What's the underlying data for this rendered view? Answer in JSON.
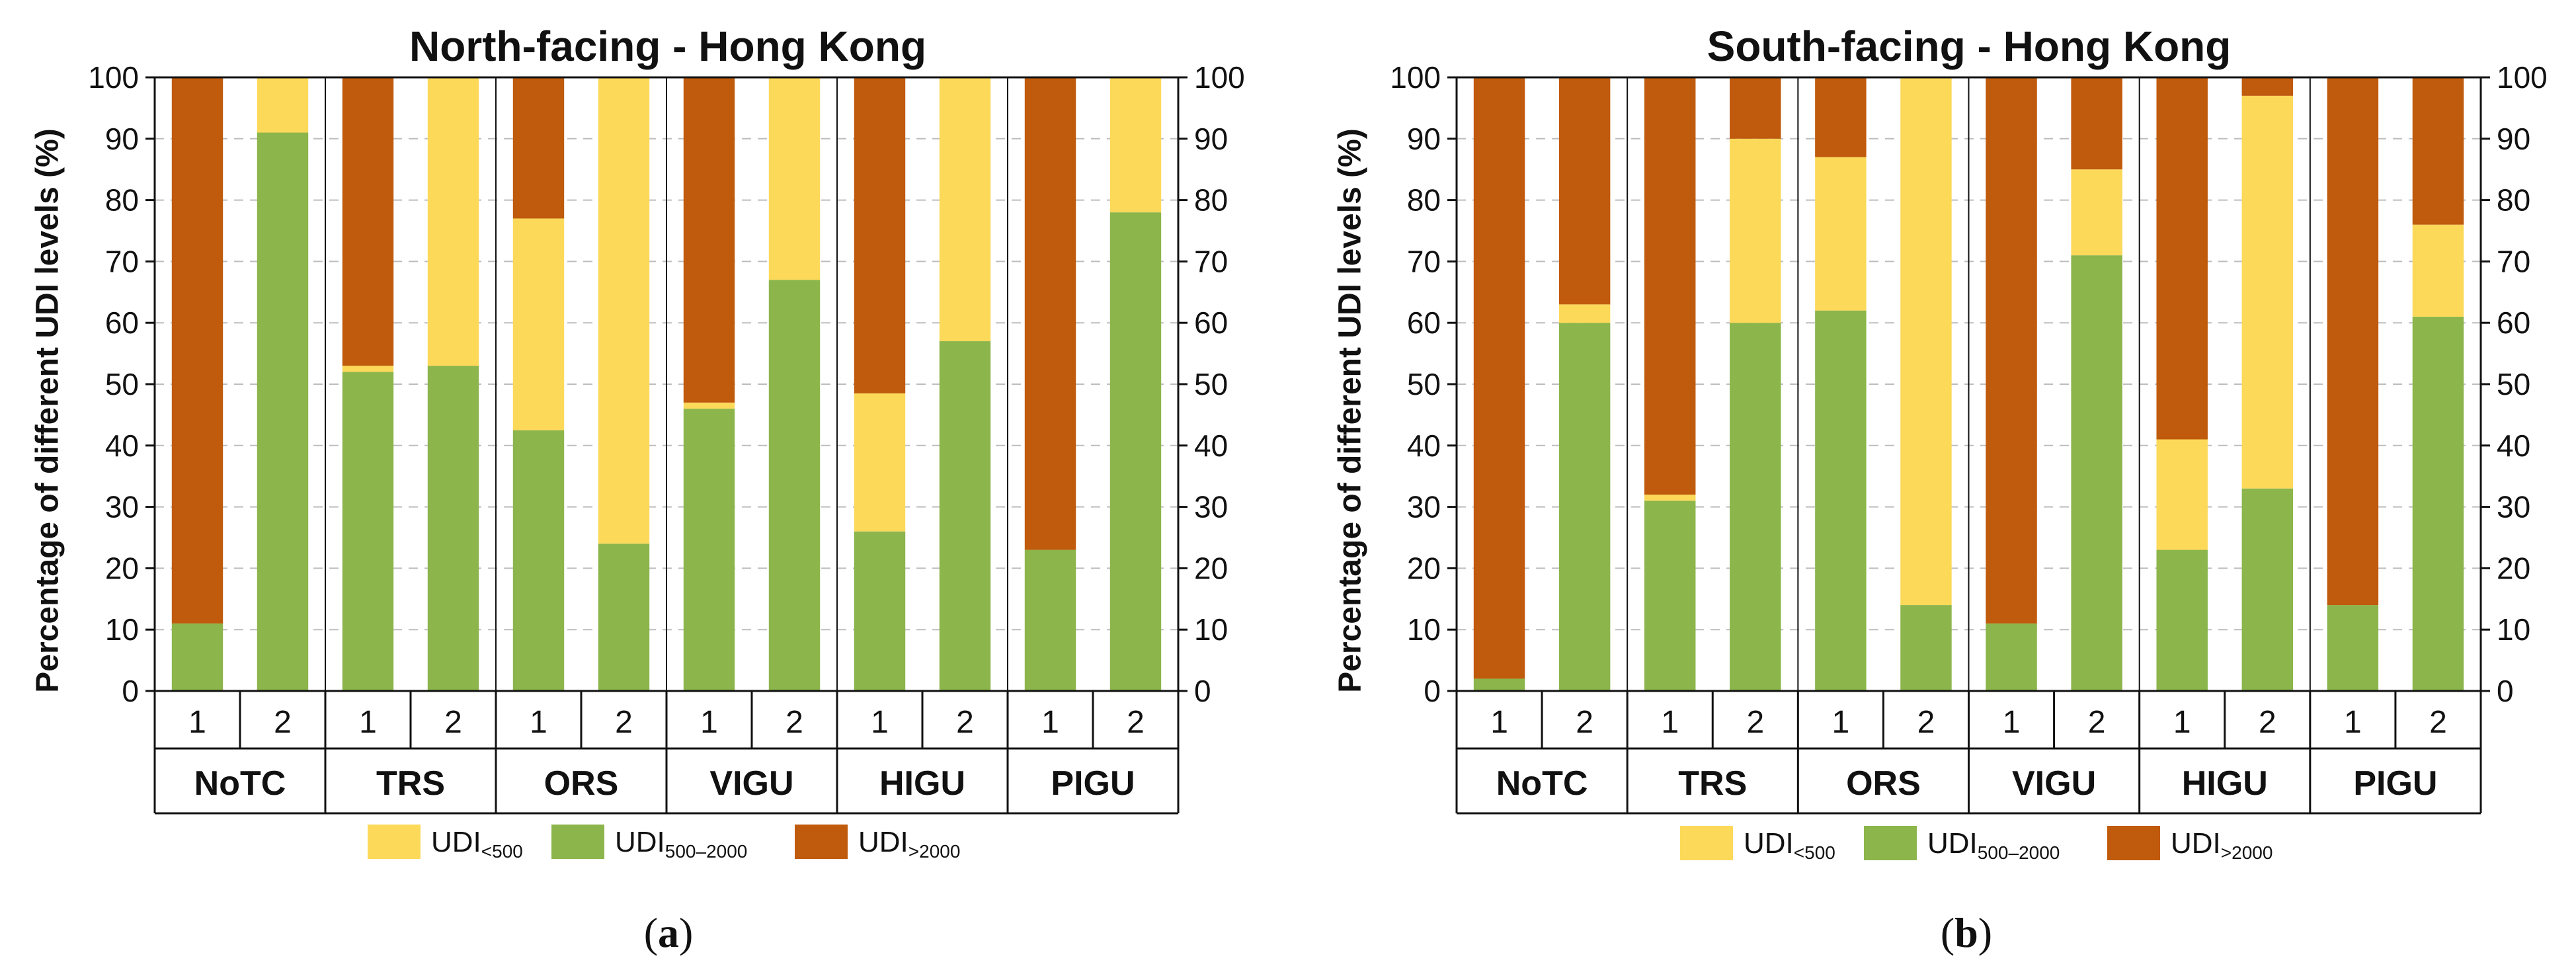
{
  "chart_data": [
    {
      "type": "stacked-bar",
      "title": "North-facing - Hong Kong",
      "ylabel": "Percentage of different UDI levels (%)",
      "ylim": [
        0,
        100
      ],
      "yticks": [
        "0",
        "10",
        "20",
        "30",
        "40",
        "50",
        "60",
        "70",
        "80",
        "90",
        "100"
      ],
      "caption_letter": "a",
      "groups": [
        {
          "name": "NoTC",
          "bars": [
            {
              "label": "1",
              "udi_500_2000": 11,
              "udi_lt_500": 0,
              "udi_gt_2000": 89
            },
            {
              "label": "2",
              "udi_500_2000": 91,
              "udi_lt_500": 9,
              "udi_gt_2000": 0
            }
          ]
        },
        {
          "name": "TRS",
          "bars": [
            {
              "label": "1",
              "udi_500_2000": 52,
              "udi_lt_500": 1,
              "udi_gt_2000": 47
            },
            {
              "label": "2",
              "udi_500_2000": 53,
              "udi_lt_500": 47,
              "udi_gt_2000": 0
            }
          ]
        },
        {
          "name": "ORS",
          "bars": [
            {
              "label": "1",
              "udi_500_2000": 42.5,
              "udi_lt_500": 34.5,
              "udi_gt_2000": 23
            },
            {
              "label": "2",
              "udi_500_2000": 24,
              "udi_lt_500": 76,
              "udi_gt_2000": 0
            }
          ]
        },
        {
          "name": "VIGU",
          "bars": [
            {
              "label": "1",
              "udi_500_2000": 46,
              "udi_lt_500": 1,
              "udi_gt_2000": 53
            },
            {
              "label": "2",
              "udi_500_2000": 67,
              "udi_lt_500": 33,
              "udi_gt_2000": 0
            }
          ]
        },
        {
          "name": "HIGU",
          "bars": [
            {
              "label": "1",
              "udi_500_2000": 26,
              "udi_lt_500": 22.5,
              "udi_gt_2000": 51.5
            },
            {
              "label": "2",
              "udi_500_2000": 57,
              "udi_lt_500": 43,
              "udi_gt_2000": 0
            }
          ]
        },
        {
          "name": "PIGU",
          "bars": [
            {
              "label": "1",
              "udi_500_2000": 23,
              "udi_lt_500": 0,
              "udi_gt_2000": 77
            },
            {
              "label": "2",
              "udi_500_2000": 78,
              "udi_lt_500": 22,
              "udi_gt_2000": 0
            }
          ]
        }
      ]
    },
    {
      "type": "stacked-bar",
      "title": "South-facing - Hong Kong",
      "ylabel": "Percentage of different UDI levels (%)",
      "ylim": [
        0,
        100
      ],
      "yticks": [
        "0",
        "10",
        "20",
        "30",
        "40",
        "50",
        "60",
        "70",
        "80",
        "90",
        "100"
      ],
      "caption_letter": "b",
      "groups": [
        {
          "name": "NoTC",
          "bars": [
            {
              "label": "1",
              "udi_500_2000": 2,
              "udi_lt_500": 0,
              "udi_gt_2000": 98
            },
            {
              "label": "2",
              "udi_500_2000": 60,
              "udi_lt_500": 3,
              "udi_gt_2000": 37
            }
          ]
        },
        {
          "name": "TRS",
          "bars": [
            {
              "label": "1",
              "udi_500_2000": 31,
              "udi_lt_500": 1,
              "udi_gt_2000": 68
            },
            {
              "label": "2",
              "udi_500_2000": 60,
              "udi_lt_500": 30,
              "udi_gt_2000": 10
            }
          ]
        },
        {
          "name": "ORS",
          "bars": [
            {
              "label": "1",
              "udi_500_2000": 62,
              "udi_lt_500": 25,
              "udi_gt_2000": 13
            },
            {
              "label": "2",
              "udi_500_2000": 14,
              "udi_lt_500": 86,
              "udi_gt_2000": 0
            }
          ]
        },
        {
          "name": "VIGU",
          "bars": [
            {
              "label": "1",
              "udi_500_2000": 11,
              "udi_lt_500": 0,
              "udi_gt_2000": 89
            },
            {
              "label": "2",
              "udi_500_2000": 71,
              "udi_lt_500": 14,
              "udi_gt_2000": 15
            }
          ]
        },
        {
          "name": "HIGU",
          "bars": [
            {
              "label": "1",
              "udi_500_2000": 23,
              "udi_lt_500": 18,
              "udi_gt_2000": 59
            },
            {
              "label": "2",
              "udi_500_2000": 33,
              "udi_lt_500": 64,
              "udi_gt_2000": 3
            }
          ]
        },
        {
          "name": "PIGU",
          "bars": [
            {
              "label": "1",
              "udi_500_2000": 14,
              "udi_lt_500": 0,
              "udi_gt_2000": 86
            },
            {
              "label": "2",
              "udi_500_2000": 61,
              "udi_lt_500": 15,
              "udi_gt_2000": 24
            }
          ]
        }
      ]
    }
  ],
  "legend": [
    {
      "key": "udi_lt_500",
      "main": "UDI",
      "sub": "<500",
      "color": "#FDD95A"
    },
    {
      "key": "udi_500_2000",
      "main": "UDI",
      "sub": "500–2000",
      "color": "#8CB54B"
    },
    {
      "key": "udi_gt_2000",
      "main": "UDI",
      "sub": ">2000",
      "color": "#C05A0C"
    }
  ],
  "stack_order": [
    "udi_500_2000",
    "udi_lt_500",
    "udi_gt_2000"
  ],
  "colors": {
    "axis": "#111111",
    "grid": "#bdbdbd"
  }
}
